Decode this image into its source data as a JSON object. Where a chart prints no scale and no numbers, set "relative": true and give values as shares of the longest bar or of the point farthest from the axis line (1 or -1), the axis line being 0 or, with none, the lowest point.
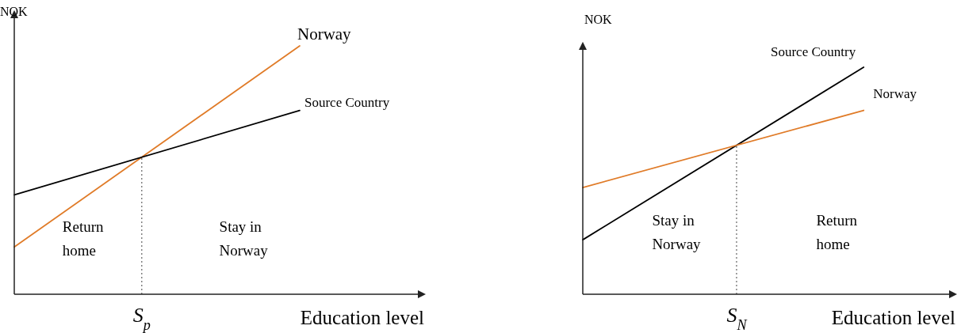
{
  "chart_data": [
    {
      "type": "line",
      "relative": true,
      "ylabel": "NOK",
      "xlabel": "Education level",
      "categories": [
        null,
        null
      ],
      "legend": false,
      "line_style": "solid",
      "series": [
        {
          "name": "Norway",
          "color": "#e07b28",
          "values": [
            0.19,
            1.0
          ]
        },
        {
          "name": "Source Country",
          "color": "#000000",
          "values": [
            0.4,
            0.74
          ]
        }
      ],
      "annotations": [
        "S$_{p}$",
        "Return home",
        "Stay in Norway"
      ]
    },
    {
      "type": "line",
      "relative": true,
      "ylabel": "NOK",
      "xlabel": "Education level",
      "categories": [
        null,
        null
      ],
      "legend": false,
      "line_style": "solid",
      "series": [
        {
          "name": "Source Country",
          "color": "#000000",
          "values": [
            0.24,
            1.0
          ]
        },
        {
          "name": "Norway",
          "color": "#e07b28",
          "values": [
            0.47,
            0.81
          ]
        }
      ],
      "annotations": [
        "S$_{N}$",
        "Stay in Norway",
        "Return home"
      ]
    }
  ]
}
